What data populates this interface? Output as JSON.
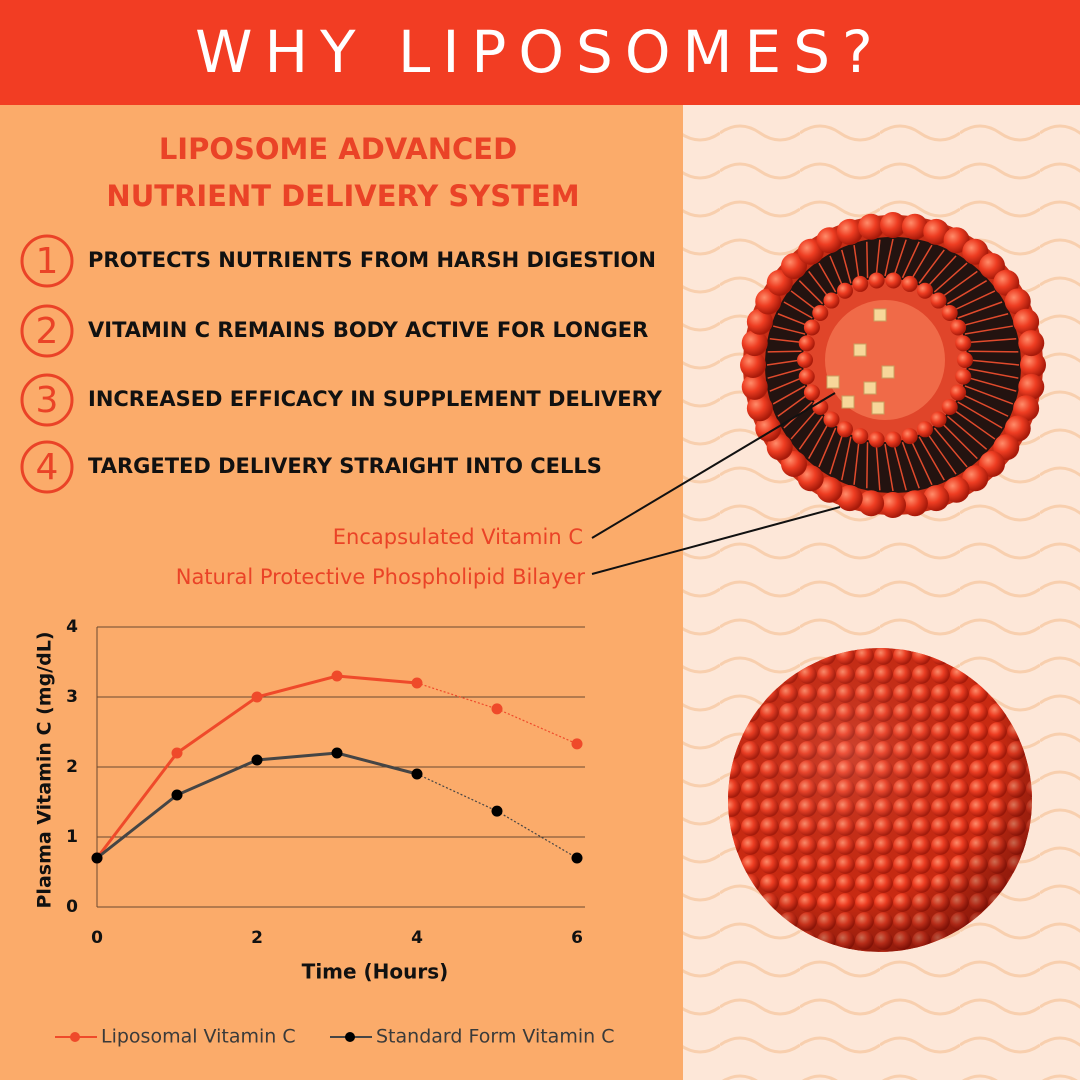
{
  "header": {
    "title": "WHY LIPOSOMES?"
  },
  "subtitle": [
    "LIPOSOME ADVANCED",
    "NUTRIENT DELIVERY SYSTEM"
  ],
  "features": [
    {
      "number": "1",
      "text": "PROTECTS NUTRIENTS FROM HARSH DIGESTION"
    },
    {
      "number": "2",
      "text": "VITAMIN C REMAINS BODY ACTIVE FOR LONGER"
    },
    {
      "number": "3",
      "text": "INCREASED EFFICACY IN SUPPLEMENT DELIVERY"
    },
    {
      "number": "4",
      "text": "TARGETED DELIVERY STRAIGHT INTO CELLS"
    }
  ],
  "callouts": [
    "Encapsulated Vitamin C",
    "Natural Protective Phospholipid Bilayer"
  ],
  "chart_data": {
    "type": "line",
    "x_label": "Time (Hours)",
    "y_label": "Plasma Vitamin C (mg/dL)",
    "x": [
      0,
      1,
      2,
      3,
      4,
      5,
      6
    ],
    "series": [
      {
        "name": "Liposomal Vitamin C",
        "color": "#ef4a2a",
        "marker_color": "#ef4a2a",
        "values": [
          0.7,
          2.2,
          3.0,
          3.3,
          3.2,
          2.83,
          2.33
        ]
      },
      {
        "name": "Standard Form Vitamin C",
        "color": "#454545",
        "marker_color": "#000000",
        "values": [
          0.7,
          1.6,
          2.1,
          2.2,
          1.9,
          1.37,
          0.7
        ]
      }
    ],
    "dotted_from_index": 4,
    "xlim": [
      0,
      6
    ],
    "xticks": [
      0,
      2,
      4,
      6
    ],
    "ylim": [
      0,
      4
    ],
    "yticks": [
      0,
      1,
      2,
      3,
      4
    ],
    "grid": true
  }
}
